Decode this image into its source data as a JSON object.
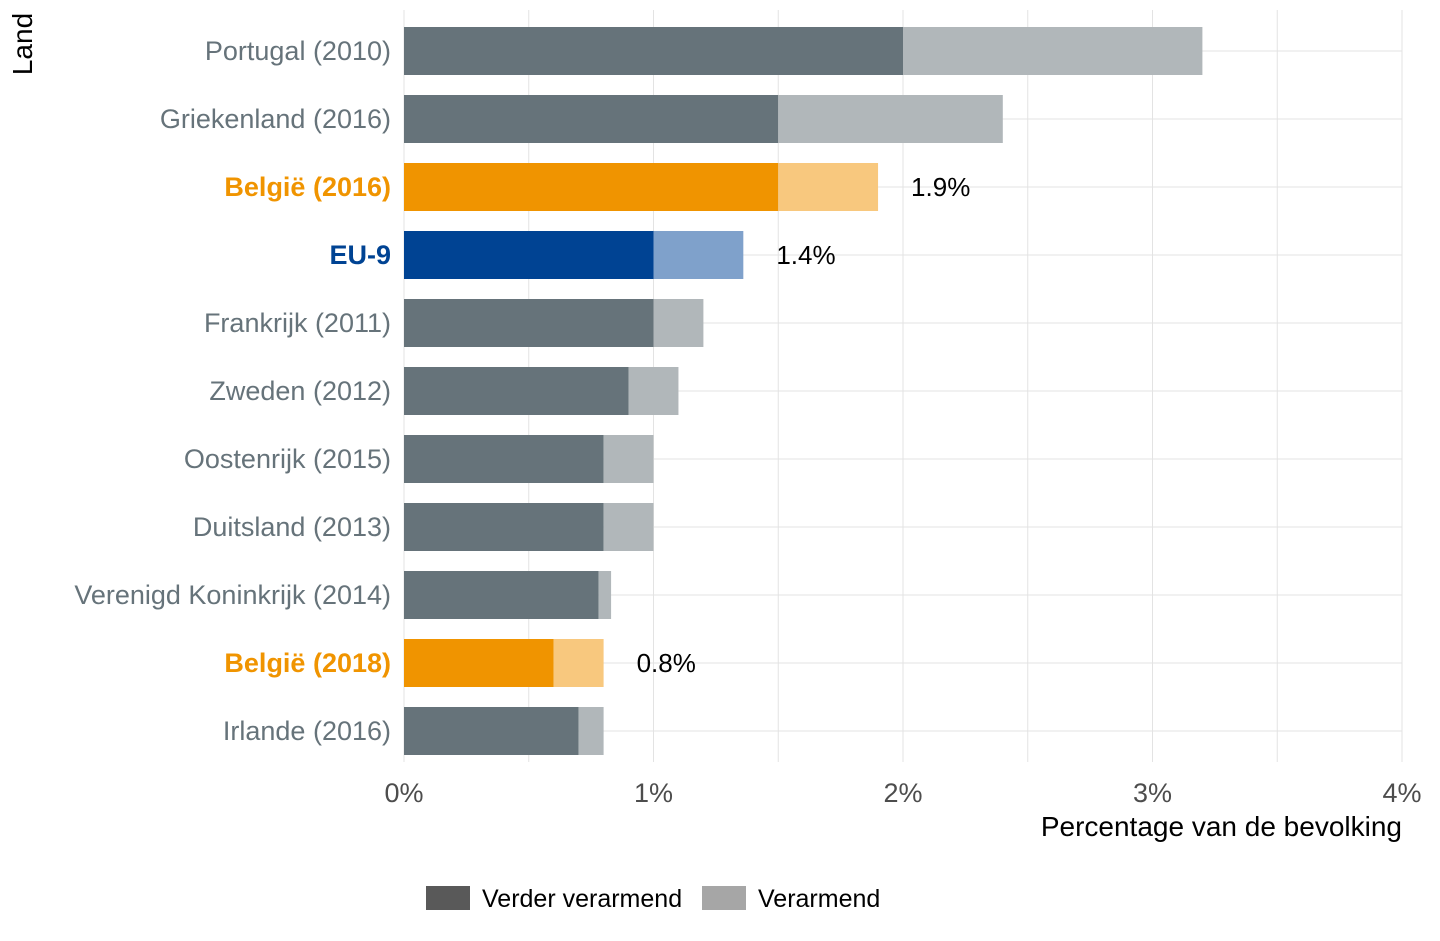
{
  "chart_data": {
    "type": "bar",
    "orientation": "horizontal",
    "stacked": true,
    "title": "",
    "xlabel": "Percentage van de bevolking",
    "ylabel": "Land",
    "xlim": [
      0,
      4
    ],
    "x_ticks": [
      {
        "value": 0,
        "label": "0%"
      },
      {
        "value": 1,
        "label": "1%"
      },
      {
        "value": 2,
        "label": "2%"
      },
      {
        "value": 3,
        "label": "3%"
      },
      {
        "value": 4,
        "label": "4%"
      }
    ],
    "grid": true,
    "legend_position": "bottom",
    "legend": [
      {
        "name": "Verder verarmend",
        "color": "#595959"
      },
      {
        "name": "Verarmend",
        "color": "#a6a6a6"
      }
    ],
    "categories": [
      {
        "label": "Portugal (2010)",
        "verder_verarmend": 2.0,
        "verarmend": 1.2,
        "group": "default",
        "total_label": ""
      },
      {
        "label": "Griekenland (2016)",
        "verder_verarmend": 1.5,
        "verarmend": 0.9,
        "group": "default",
        "total_label": ""
      },
      {
        "label": "België (2016)",
        "verder_verarmend": 1.5,
        "verarmend": 0.4,
        "group": "belgium",
        "total_label": "1.9%"
      },
      {
        "label": "EU-9",
        "verder_verarmend": 1.0,
        "verarmend": 0.36,
        "group": "eu",
        "total_label": "1.4%"
      },
      {
        "label": "Frankrijk (2011)",
        "verder_verarmend": 1.0,
        "verarmend": 0.2,
        "group": "default",
        "total_label": ""
      },
      {
        "label": "Zweden (2012)",
        "verder_verarmend": 0.9,
        "verarmend": 0.2,
        "group": "default",
        "total_label": ""
      },
      {
        "label": "Oostenrijk (2015)",
        "verder_verarmend": 0.8,
        "verarmend": 0.2,
        "group": "default",
        "total_label": ""
      },
      {
        "label": "Duitsland (2013)",
        "verder_verarmend": 0.8,
        "verarmend": 0.2,
        "group": "default",
        "total_label": ""
      },
      {
        "label": "Verenigd Koninkrijk (2014)",
        "verder_verarmend": 0.78,
        "verarmend": 0.05,
        "group": "default",
        "total_label": ""
      },
      {
        "label": "België (2018)",
        "verder_verarmend": 0.6,
        "verarmend": 0.2,
        "group": "belgium",
        "total_label": "0.8%"
      },
      {
        "label": "Irlande (2016)",
        "verder_verarmend": 0.7,
        "verarmend": 0.1,
        "group": "default",
        "total_label": ""
      }
    ],
    "colors": {
      "default": {
        "dark": "#66737a",
        "light": "#b1b7ba",
        "label": "#66737a"
      },
      "belgium": {
        "dark": "#f09400",
        "light": "#f8c87e",
        "label": "#f09400"
      },
      "eu": {
        "dark": "#004393",
        "light": "#7fa1cb",
        "label": "#004393"
      }
    }
  }
}
